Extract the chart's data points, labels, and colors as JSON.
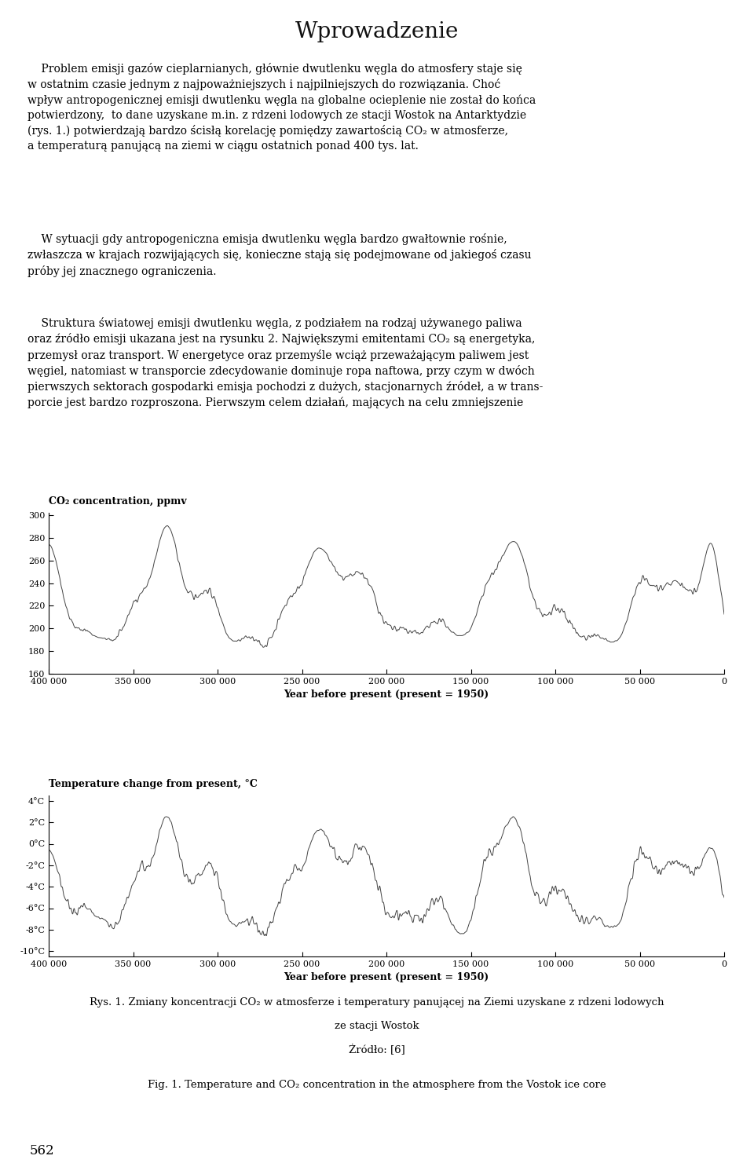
{
  "title": "Wprowadzenie",
  "page_number": "562",
  "background_color": "#ffffff",
  "text_color": "#000000",
  "fig1_title": "CO₂ concentration, ppmv",
  "fig2_title": "Temperature change from present, °C",
  "xlabel": "Year before present (present = 1950)",
  "xlim": [
    400000,
    0
  ],
  "xticks": [
    400000,
    350000,
    300000,
    250000,
    200000,
    150000,
    100000,
    50000,
    0
  ],
  "xticklabels": [
    "400 000",
    "350 000",
    "300 000",
    "250 000",
    "200 000",
    "150 000",
    "100 000",
    "50 000",
    "0"
  ],
  "fig1_ylim": [
    160,
    300
  ],
  "fig1_yticks": [
    160,
    180,
    200,
    220,
    240,
    260,
    280,
    300
  ],
  "fig1_yticklabels": [
    "160",
    "180",
    "200",
    "220",
    "240",
    "260",
    "280",
    "300"
  ],
  "fig2_ylim": [
    -10,
    4
  ],
  "fig2_yticks": [
    -10,
    -8,
    -6,
    -4,
    -2,
    0,
    2,
    4
  ],
  "fig2_yticklabels": [
    "-10°C",
    "-8°C",
    "-6°C",
    "-4°C",
    "-2°C",
    "0°C",
    "2°C",
    "4°C"
  ],
  "caption_pl_1": "Rys. 1. Zmiany koncentracji CO₂ w atmosferze i temperatury panującej na Ziemi uzyskane z rdzeni lodowych",
  "caption_pl_2": "ze stacji Wostok",
  "caption_pl_3": "Żródło: [6]",
  "caption_en": "Fig. 1. Temperature and CO₂ concentration in the atmosphere from the Vostok ice core",
  "line_color": "#444444",
  "line_width": 0.7,
  "para1": "    Problem emisji gazów cieplarnianych, głównie dwutlenku węgla do atmosfery staje się w ostatnim czasie jednym z najważniejszych i najpilniejszych do rozwiązania. Choć wpływ antropogenicznej emisji dwutlenku węgla na globalne ocieplenie nie został do końca potwierdzony,  to dane uzyskane m.in. z rdzeni lodowych ze stacji Wostok na Antarktydzie (rys. 1.) potwierdzają bardzo ściśłą korelację pomiędzy zawartością CO₂ w atmosferze, a temperaturą panującą na ziemi w ciągu ostatnich ponad 400 tys. lat.",
  "para2": "    W sytuacji gdy antropogeniczna emisja dwutlenku węgla bardzo gwałtownie rośnie, zwłaszcza w krajach rozwijających się, konieczne stają się podejmowane od jakiegoś czasu próby jej znacznego ograniczenia.",
  "para3": "    Struktura światowej emisji dwutlenku węgla, z podziałem na rodzaj używanego paliwa oraz źródło emisji ukazana jest na rysunku 2. Największymi emitentami CO₂ są energetyka, przemyśł oraz transport. W energetyce oraz przemyśle wciąż przeważającym paliwem jest węgiel, natomiast w transporcie zdecydowanie dominuje ropa naftowa, przy czym w dwóch pierwszych sektorach gospodarki emisja pochodzi z dużych, stacjonarnych źródeł, a w trans- porcie jest bardzo rozproszona. Pierwszym celem działań, mających na celu zmniejszenie"
}
